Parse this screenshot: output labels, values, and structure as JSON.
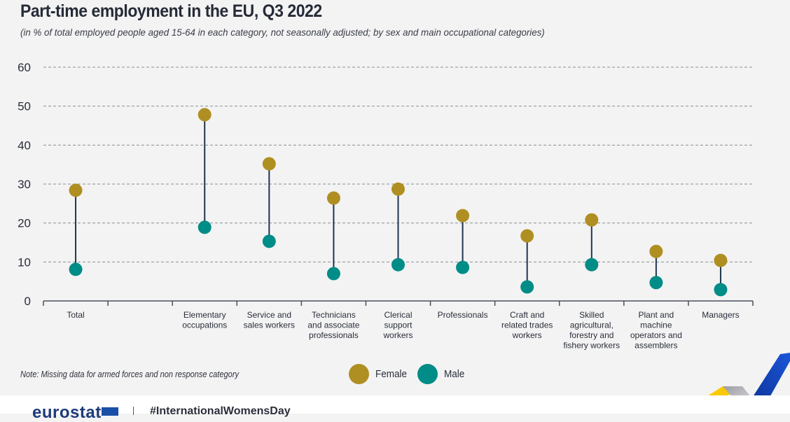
{
  "title": "Part-time employment in the EU, Q3 2022",
  "subtitle": "(in % of total employed people aged 15-64 in each category, not seasonally adjusted; by sex and main occupational categories)",
  "note": "Note: Missing data for armed forces and non response category",
  "footer": {
    "logo": "eurostat",
    "hashtag": "#InternationalWomensDay"
  },
  "colors": {
    "female": "#b08f22",
    "male": "#008c87",
    "stem": "#1f3550",
    "grid": "#8a8d94",
    "axis": "#4a4f5c"
  },
  "chart_data": {
    "type": "dumbbell",
    "title": "Part-time employment in the EU, Q3 2022",
    "subtitle": "(in % of total employed people aged 15-64 in each category, not seasonally adjusted; by sex and main occupational categories)",
    "xlabel": "",
    "ylabel": "",
    "ylim": [
      0,
      60
    ],
    "yticks": [
      0,
      10,
      20,
      30,
      40,
      50,
      60
    ],
    "grid": true,
    "legend_position": "bottom-center",
    "categories": [
      [
        "Total"
      ],
      [
        ""
      ],
      [
        "Elementary",
        "occupations"
      ],
      [
        "Service and",
        "sales workers"
      ],
      [
        "Technicians",
        "and associate",
        "professionals"
      ],
      [
        "Clerical",
        "support",
        "workers"
      ],
      [
        "Professionals"
      ],
      [
        "Craft and",
        "related trades",
        "workers"
      ],
      [
        "Skilled",
        "agricultural,",
        "forestry and",
        "fishery workers"
      ],
      [
        "Plant and",
        "machine",
        "operators and",
        "assemblers"
      ],
      [
        "Managers"
      ]
    ],
    "series": [
      {
        "name": "Female",
        "values": [
          28.4,
          null,
          47.8,
          35.2,
          26.4,
          28.7,
          21.9,
          16.7,
          20.8,
          12.7,
          10.4
        ]
      },
      {
        "name": "Male",
        "values": [
          8.1,
          null,
          18.9,
          15.3,
          7.0,
          9.3,
          8.6,
          3.6,
          9.3,
          4.7,
          2.9
        ]
      }
    ]
  }
}
